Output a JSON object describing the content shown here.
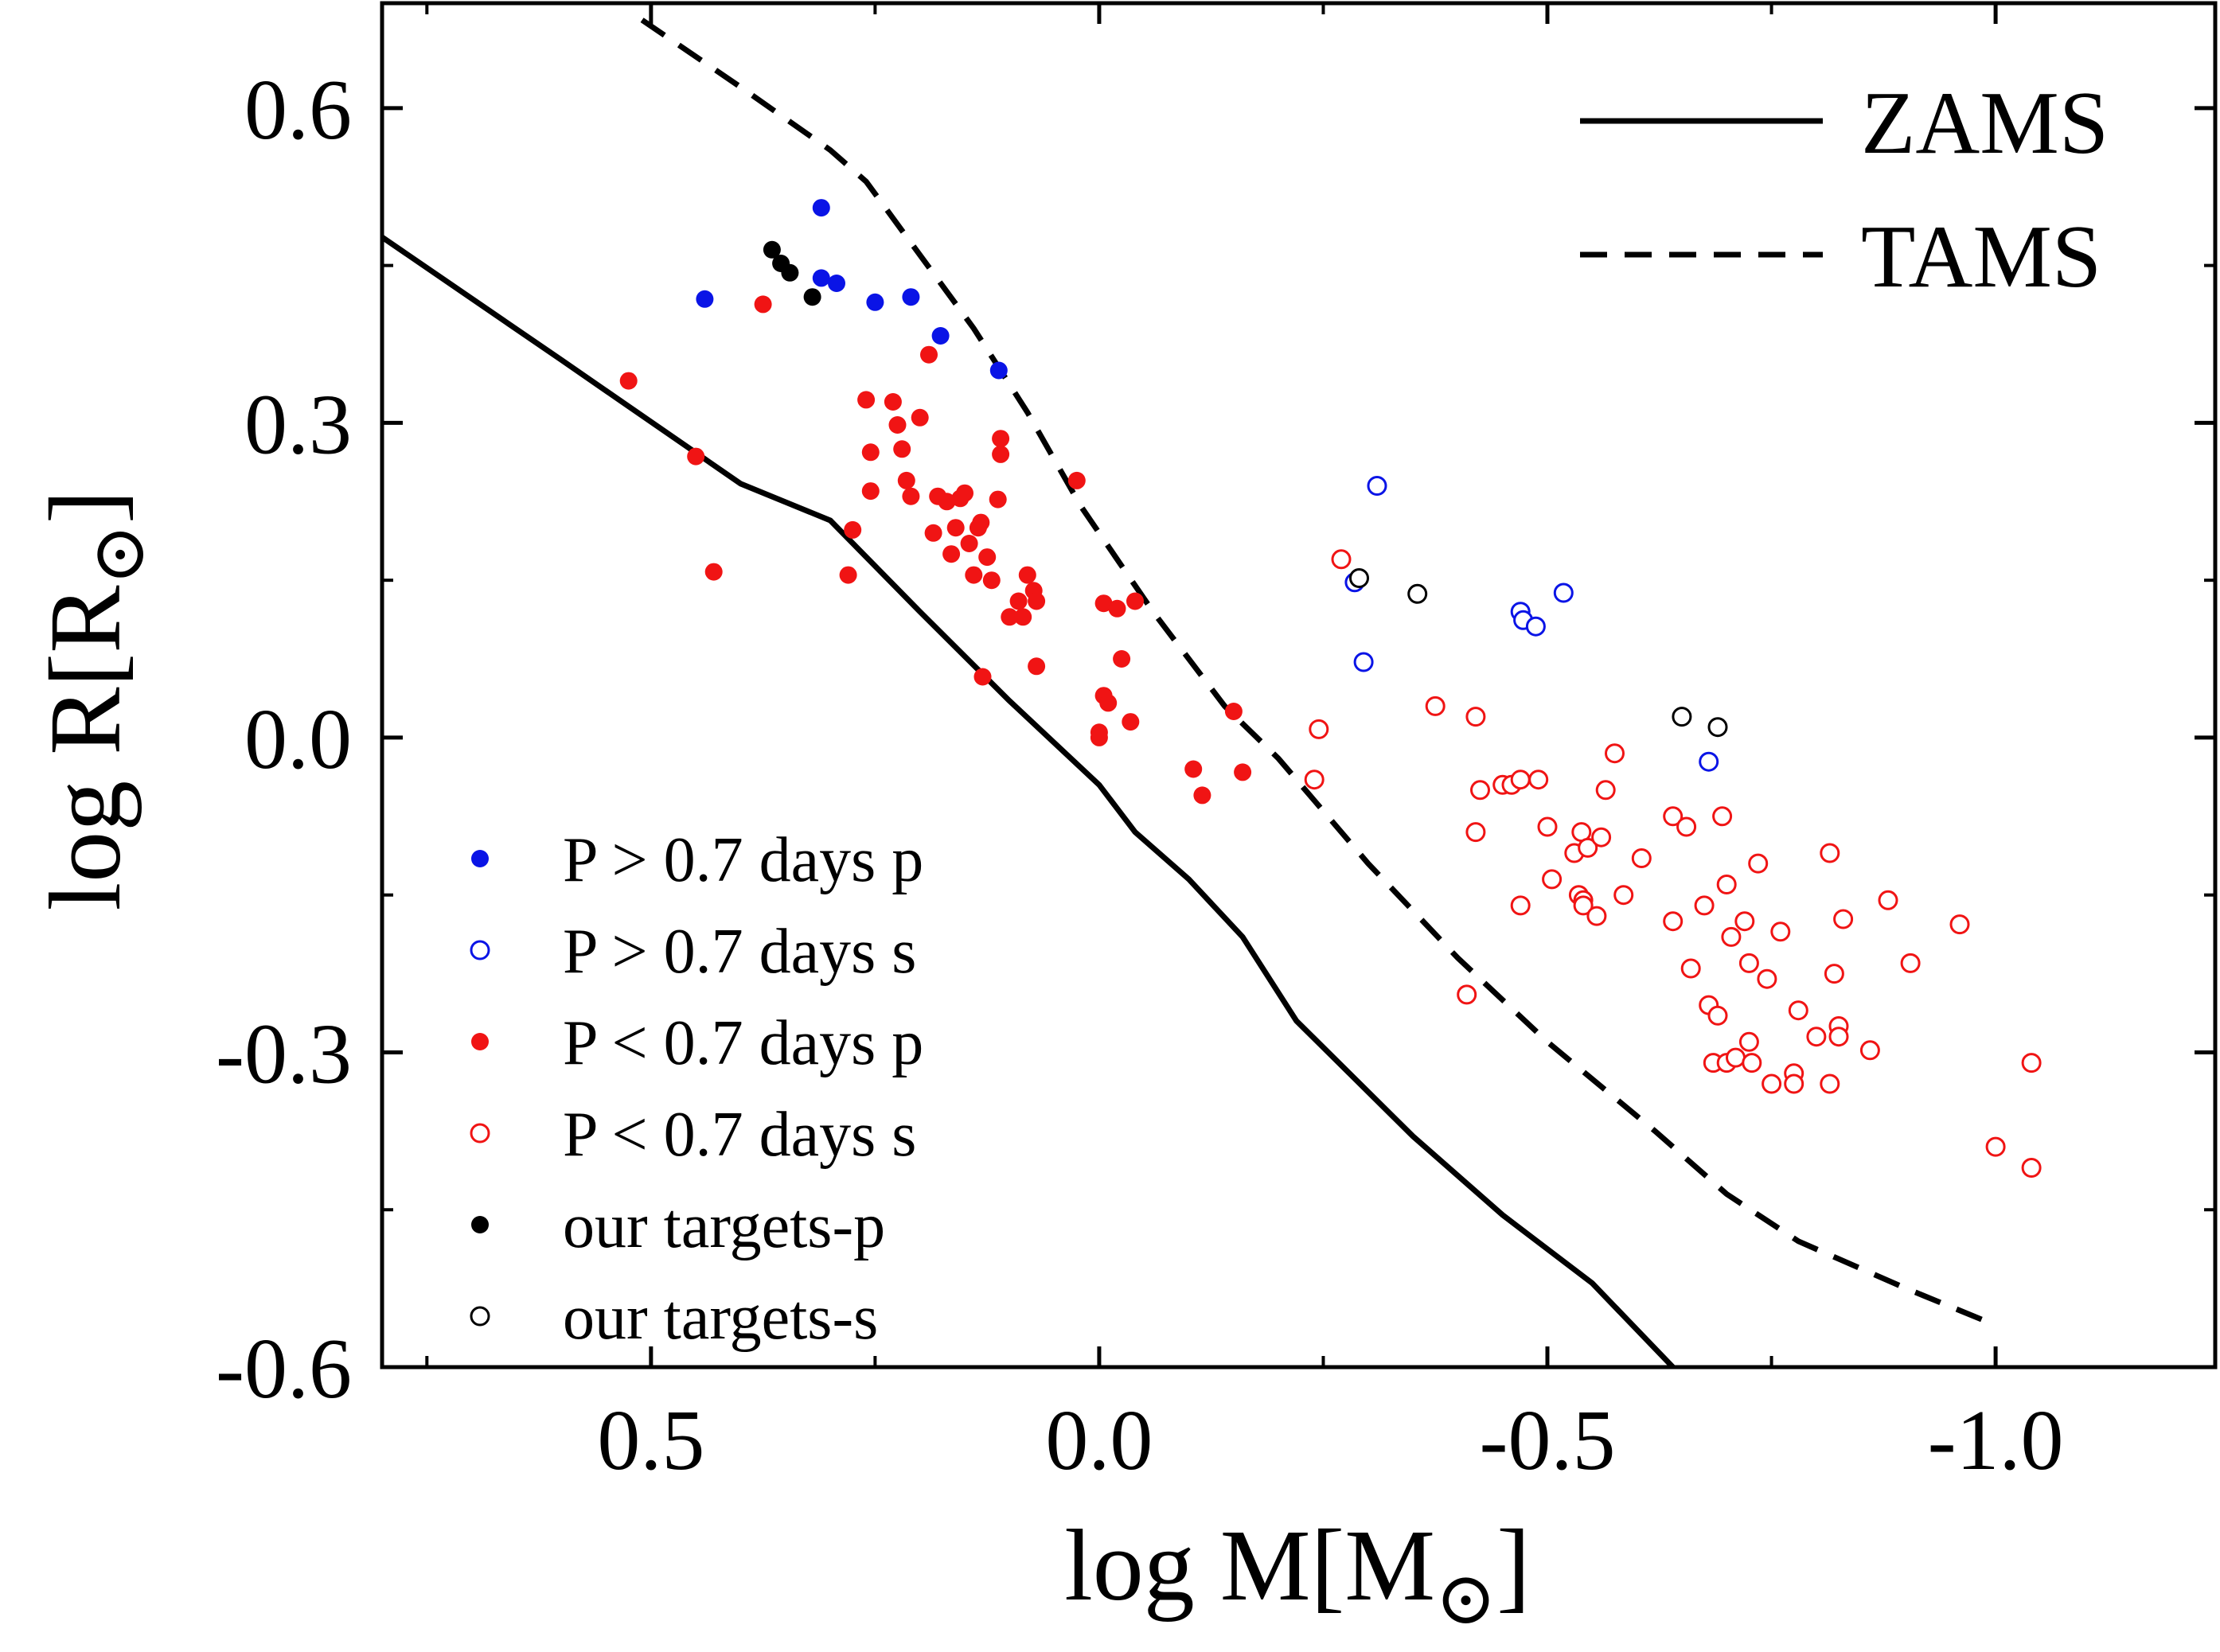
{
  "chart_data": {
    "type": "scatter",
    "xlabel": "log M[M⊙]",
    "ylabel": "log R[R⊙]",
    "xlabel_parts": {
      "main": "log M[M",
      "sub": "⊙",
      "close": "]"
    },
    "ylabel_parts": {
      "main": "log R[R",
      "sub": "⊙",
      "close": "]"
    },
    "x_reversed": true,
    "xlim": [
      0.8,
      -1.245
    ],
    "ylim": [
      -0.6,
      0.7
    ],
    "x_ticks": [
      0.5,
      0.0,
      -0.5,
      -1.0
    ],
    "x_tick_labels": [
      "0.5",
      "0.0",
      "-0.5",
      "-1.0"
    ],
    "y_ticks": [
      0.6,
      0.3,
      0.0,
      -0.3,
      -0.6
    ],
    "y_tick_labels": [
      "0.6",
      "0.3",
      "0.0",
      "-0.3",
      "-0.6"
    ],
    "lines": [
      {
        "name": "ZAMS",
        "style": "solid",
        "color": "#000000",
        "points": [
          [
            0.8,
            0.477
          ],
          [
            0.6,
            0.36
          ],
          [
            0.4,
            0.242
          ],
          [
            0.3,
            0.207
          ],
          [
            0.2,
            0.12
          ],
          [
            0.1,
            0.035
          ],
          [
            0.0,
            -0.045
          ],
          [
            -0.04,
            -0.09
          ],
          [
            -0.1,
            -0.135
          ],
          [
            -0.16,
            -0.19
          ],
          [
            -0.22,
            -0.27
          ],
          [
            -0.35,
            -0.38
          ],
          [
            -0.45,
            -0.455
          ],
          [
            -0.55,
            -0.52
          ],
          [
            -0.64,
            -0.6
          ]
        ]
      },
      {
        "name": "TAMS",
        "style": "dashed",
        "color": "#000000",
        "points": [
          [
            0.51,
            0.684
          ],
          [
            0.4,
            0.62
          ],
          [
            0.3,
            0.56
          ],
          [
            0.26,
            0.53
          ],
          [
            0.2,
            0.46
          ],
          [
            0.14,
            0.39
          ],
          [
            0.08,
            0.31
          ],
          [
            0.02,
            0.22
          ],
          [
            -0.06,
            0.12
          ],
          [
            -0.14,
            0.03
          ],
          [
            -0.2,
            -0.02
          ],
          [
            -0.3,
            -0.12
          ],
          [
            -0.4,
            -0.21
          ],
          [
            -0.5,
            -0.29
          ],
          [
            -0.62,
            -0.375
          ],
          [
            -0.7,
            -0.435
          ],
          [
            -0.78,
            -0.48
          ],
          [
            -0.9,
            -0.525
          ],
          [
            -1.0,
            -0.56
          ]
        ]
      }
    ],
    "legend_curves": [
      "ZAMS",
      "TAMS"
    ],
    "legend_curves_position": "top-right",
    "legend_markers_position": "bottom-left",
    "series": [
      {
        "name": "P > 0.7 days p",
        "color": "#0a14e6",
        "filled": true,
        "points": [
          [
            0.44,
            0.418
          ],
          [
            0.31,
            0.505
          ],
          [
            0.31,
            0.438
          ],
          [
            0.293,
            0.433
          ],
          [
            0.25,
            0.415
          ],
          [
            0.21,
            0.42
          ],
          [
            0.177,
            0.383
          ],
          [
            0.112,
            0.35
          ]
        ]
      },
      {
        "name": "P > 0.7 days s",
        "color": "#0a14e6",
        "filled": false,
        "points": [
          [
            -0.31,
            0.24
          ],
          [
            -0.295,
            0.072
          ],
          [
            -0.285,
            0.148
          ],
          [
            -0.47,
            0.12
          ],
          [
            -0.473,
            0.112
          ],
          [
            -0.487,
            0.106
          ],
          [
            -0.518,
            0.138
          ],
          [
            -0.68,
            -0.023
          ]
        ]
      },
      {
        "name": "P < 0.7 days p",
        "color": "#f01414",
        "filled": true,
        "points": [
          [
            0.525,
            0.34
          ],
          [
            0.45,
            0.268
          ],
          [
            0.43,
            0.158
          ],
          [
            0.375,
            0.413
          ],
          [
            0.275,
            0.198
          ],
          [
            0.28,
            0.155
          ],
          [
            0.26,
            0.322
          ],
          [
            0.255,
            0.272
          ],
          [
            0.255,
            0.235
          ],
          [
            0.23,
            0.32
          ],
          [
            0.225,
            0.298
          ],
          [
            0.22,
            0.275
          ],
          [
            0.215,
            0.245
          ],
          [
            0.21,
            0.23
          ],
          [
            0.2,
            0.305
          ],
          [
            0.19,
            0.365
          ],
          [
            0.185,
            0.195
          ],
          [
            0.18,
            0.23
          ],
          [
            0.17,
            0.225
          ],
          [
            0.165,
            0.175
          ],
          [
            0.16,
            0.2
          ],
          [
            0.155,
            0.228
          ],
          [
            0.15,
            0.233
          ],
          [
            0.145,
            0.185
          ],
          [
            0.14,
            0.155
          ],
          [
            0.135,
            0.2
          ],
          [
            0.132,
            0.205
          ],
          [
            0.13,
            0.058
          ],
          [
            0.125,
            0.172
          ],
          [
            0.12,
            0.15
          ],
          [
            0.113,
            0.227
          ],
          [
            0.11,
            0.285
          ],
          [
            0.11,
            0.27
          ],
          [
            0.1,
            0.115
          ],
          [
            0.09,
            0.13
          ],
          [
            0.085,
            0.115
          ],
          [
            0.08,
            0.155
          ],
          [
            0.073,
            0.14
          ],
          [
            0.07,
            0.068
          ],
          [
            0.07,
            0.13
          ],
          [
            0.025,
            0.245
          ],
          [
            0.0,
            0.005
          ],
          [
            0.0,
            0.0
          ],
          [
            -0.005,
            0.128
          ],
          [
            -0.005,
            0.04
          ],
          [
            -0.01,
            0.033
          ],
          [
            -0.02,
            0.123
          ],
          [
            -0.025,
            0.075
          ],
          [
            -0.035,
            0.015
          ],
          [
            -0.04,
            0.13
          ],
          [
            -0.105,
            -0.03
          ],
          [
            -0.115,
            -0.055
          ],
          [
            -0.15,
            0.025
          ],
          [
            -0.16,
            -0.033
          ]
        ]
      },
      {
        "name": "P < 0.7 days s",
        "color": "#f01414",
        "filled": false,
        "points": [
          [
            -0.27,
            0.17
          ],
          [
            -0.245,
            0.008
          ],
          [
            -0.24,
            -0.04
          ],
          [
            -0.375,
            0.03
          ],
          [
            -0.41,
            -0.245
          ],
          [
            -0.42,
            0.02
          ],
          [
            -0.42,
            -0.09
          ],
          [
            -0.425,
            -0.05
          ],
          [
            -0.45,
            -0.045
          ],
          [
            -0.46,
            -0.045
          ],
          [
            -0.47,
            -0.04
          ],
          [
            -0.47,
            -0.16
          ],
          [
            -0.49,
            -0.04
          ],
          [
            -0.5,
            -0.085
          ],
          [
            -0.505,
            -0.135
          ],
          [
            -0.53,
            -0.11
          ],
          [
            -0.535,
            -0.15
          ],
          [
            -0.538,
            -0.09
          ],
          [
            -0.54,
            -0.155
          ],
          [
            -0.54,
            -0.16
          ],
          [
            -0.545,
            -0.105
          ],
          [
            -0.555,
            -0.17
          ],
          [
            -0.56,
            -0.095
          ],
          [
            -0.565,
            -0.05
          ],
          [
            -0.575,
            -0.015
          ],
          [
            -0.585,
            -0.15
          ],
          [
            -0.605,
            -0.115
          ],
          [
            -0.64,
            -0.075
          ],
          [
            -0.64,
            -0.175
          ],
          [
            -0.655,
            -0.085
          ],
          [
            -0.66,
            -0.22
          ],
          [
            -0.675,
            -0.16
          ],
          [
            -0.68,
            -0.255
          ],
          [
            -0.685,
            -0.31
          ],
          [
            -0.69,
            -0.265
          ],
          [
            -0.695,
            -0.075
          ],
          [
            -0.7,
            -0.14
          ],
          [
            -0.7,
            -0.31
          ],
          [
            -0.705,
            -0.19
          ],
          [
            -0.71,
            -0.305
          ],
          [
            -0.72,
            -0.175
          ],
          [
            -0.725,
            -0.215
          ],
          [
            -0.725,
            -0.29
          ],
          [
            -0.728,
            -0.31
          ],
          [
            -0.735,
            -0.12
          ],
          [
            -0.745,
            -0.23
          ],
          [
            -0.75,
            -0.33
          ],
          [
            -0.76,
            -0.185
          ],
          [
            -0.775,
            -0.32
          ],
          [
            -0.775,
            -0.33
          ],
          [
            -0.78,
            -0.26
          ],
          [
            -0.8,
            -0.285
          ],
          [
            -0.815,
            -0.11
          ],
          [
            -0.815,
            -0.33
          ],
          [
            -0.82,
            -0.225
          ],
          [
            -0.825,
            -0.275
          ],
          [
            -0.825,
            -0.285
          ],
          [
            -0.83,
            -0.173
          ],
          [
            -0.86,
            -0.298
          ],
          [
            -0.88,
            -0.155
          ],
          [
            -0.905,
            -0.215
          ],
          [
            -0.96,
            -0.178
          ],
          [
            -1.0,
            -0.39
          ],
          [
            -1.04,
            -0.31
          ],
          [
            -1.04,
            -0.41
          ]
        ]
      },
      {
        "name": "our targets-p",
        "color": "#000000",
        "filled": true,
        "points": [
          [
            0.365,
            0.465
          ],
          [
            0.355,
            0.452
          ],
          [
            0.345,
            0.443
          ],
          [
            0.32,
            0.42
          ]
        ]
      },
      {
        "name": "our targets-s",
        "color": "#000000",
        "filled": false,
        "points": [
          [
            -0.29,
            0.152
          ],
          [
            -0.355,
            0.137
          ],
          [
            -0.65,
            0.02
          ],
          [
            -0.69,
            0.01
          ]
        ]
      }
    ]
  }
}
